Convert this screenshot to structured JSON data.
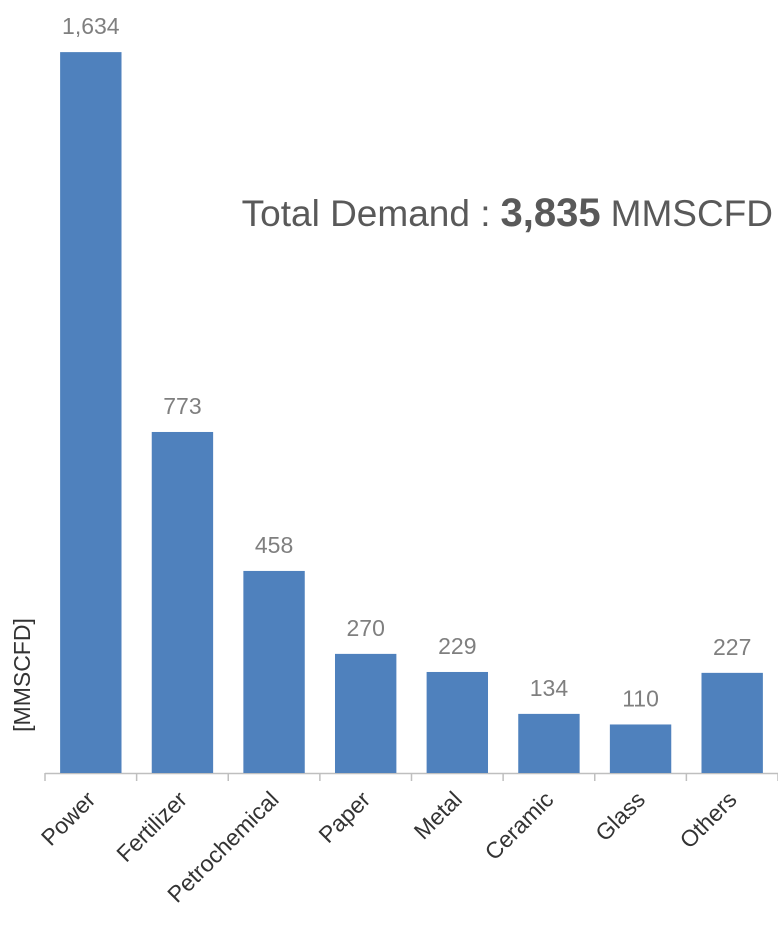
{
  "chart_data": {
    "type": "bar",
    "y_label": "[MMSCFD]",
    "annotation": {
      "prefix": "Total Demand :",
      "total": "3,835",
      "unit": "MMSCFD"
    },
    "categories": [
      "Power",
      "Fertilizer",
      "Petrochemical",
      "Paper",
      "Metal",
      "Ceramic",
      "Glass",
      "Others"
    ],
    "values": [
      1634,
      773,
      458,
      270,
      229,
      134,
      110,
      227
    ],
    "value_labels": [
      "1,634",
      "773",
      "458",
      "270",
      "229",
      "134",
      "110",
      "227"
    ],
    "color": "#4f81bd",
    "ylim": [
      0,
      1700
    ]
  }
}
